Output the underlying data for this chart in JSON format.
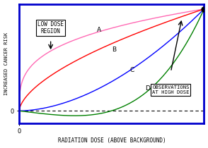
{
  "xlabel": "RADIATION DOSE (ABOVE BACKGROUND)",
  "ylabel": "INCREASED CANCER RISK",
  "curve_A_color": "#FF69B4",
  "curve_B_color": "#FF0000",
  "curve_C_color": "#0000FF",
  "curve_D_color": "#008000",
  "dashed_color": "#000000",
  "label_A": "A",
  "label_B": "B",
  "label_C": "C",
  "label_D": "D",
  "box_low_dose": "LOW DOSE\nREGION",
  "box_obs": "OBSERVATIONS\nAT HIGH DOSE",
  "endpoint_color": "#000000",
  "background_color": "#FFFFFF",
  "border_color": "#0000CC",
  "xlim": [
    0,
    1
  ],
  "ylim": [
    -0.12,
    1.05
  ]
}
